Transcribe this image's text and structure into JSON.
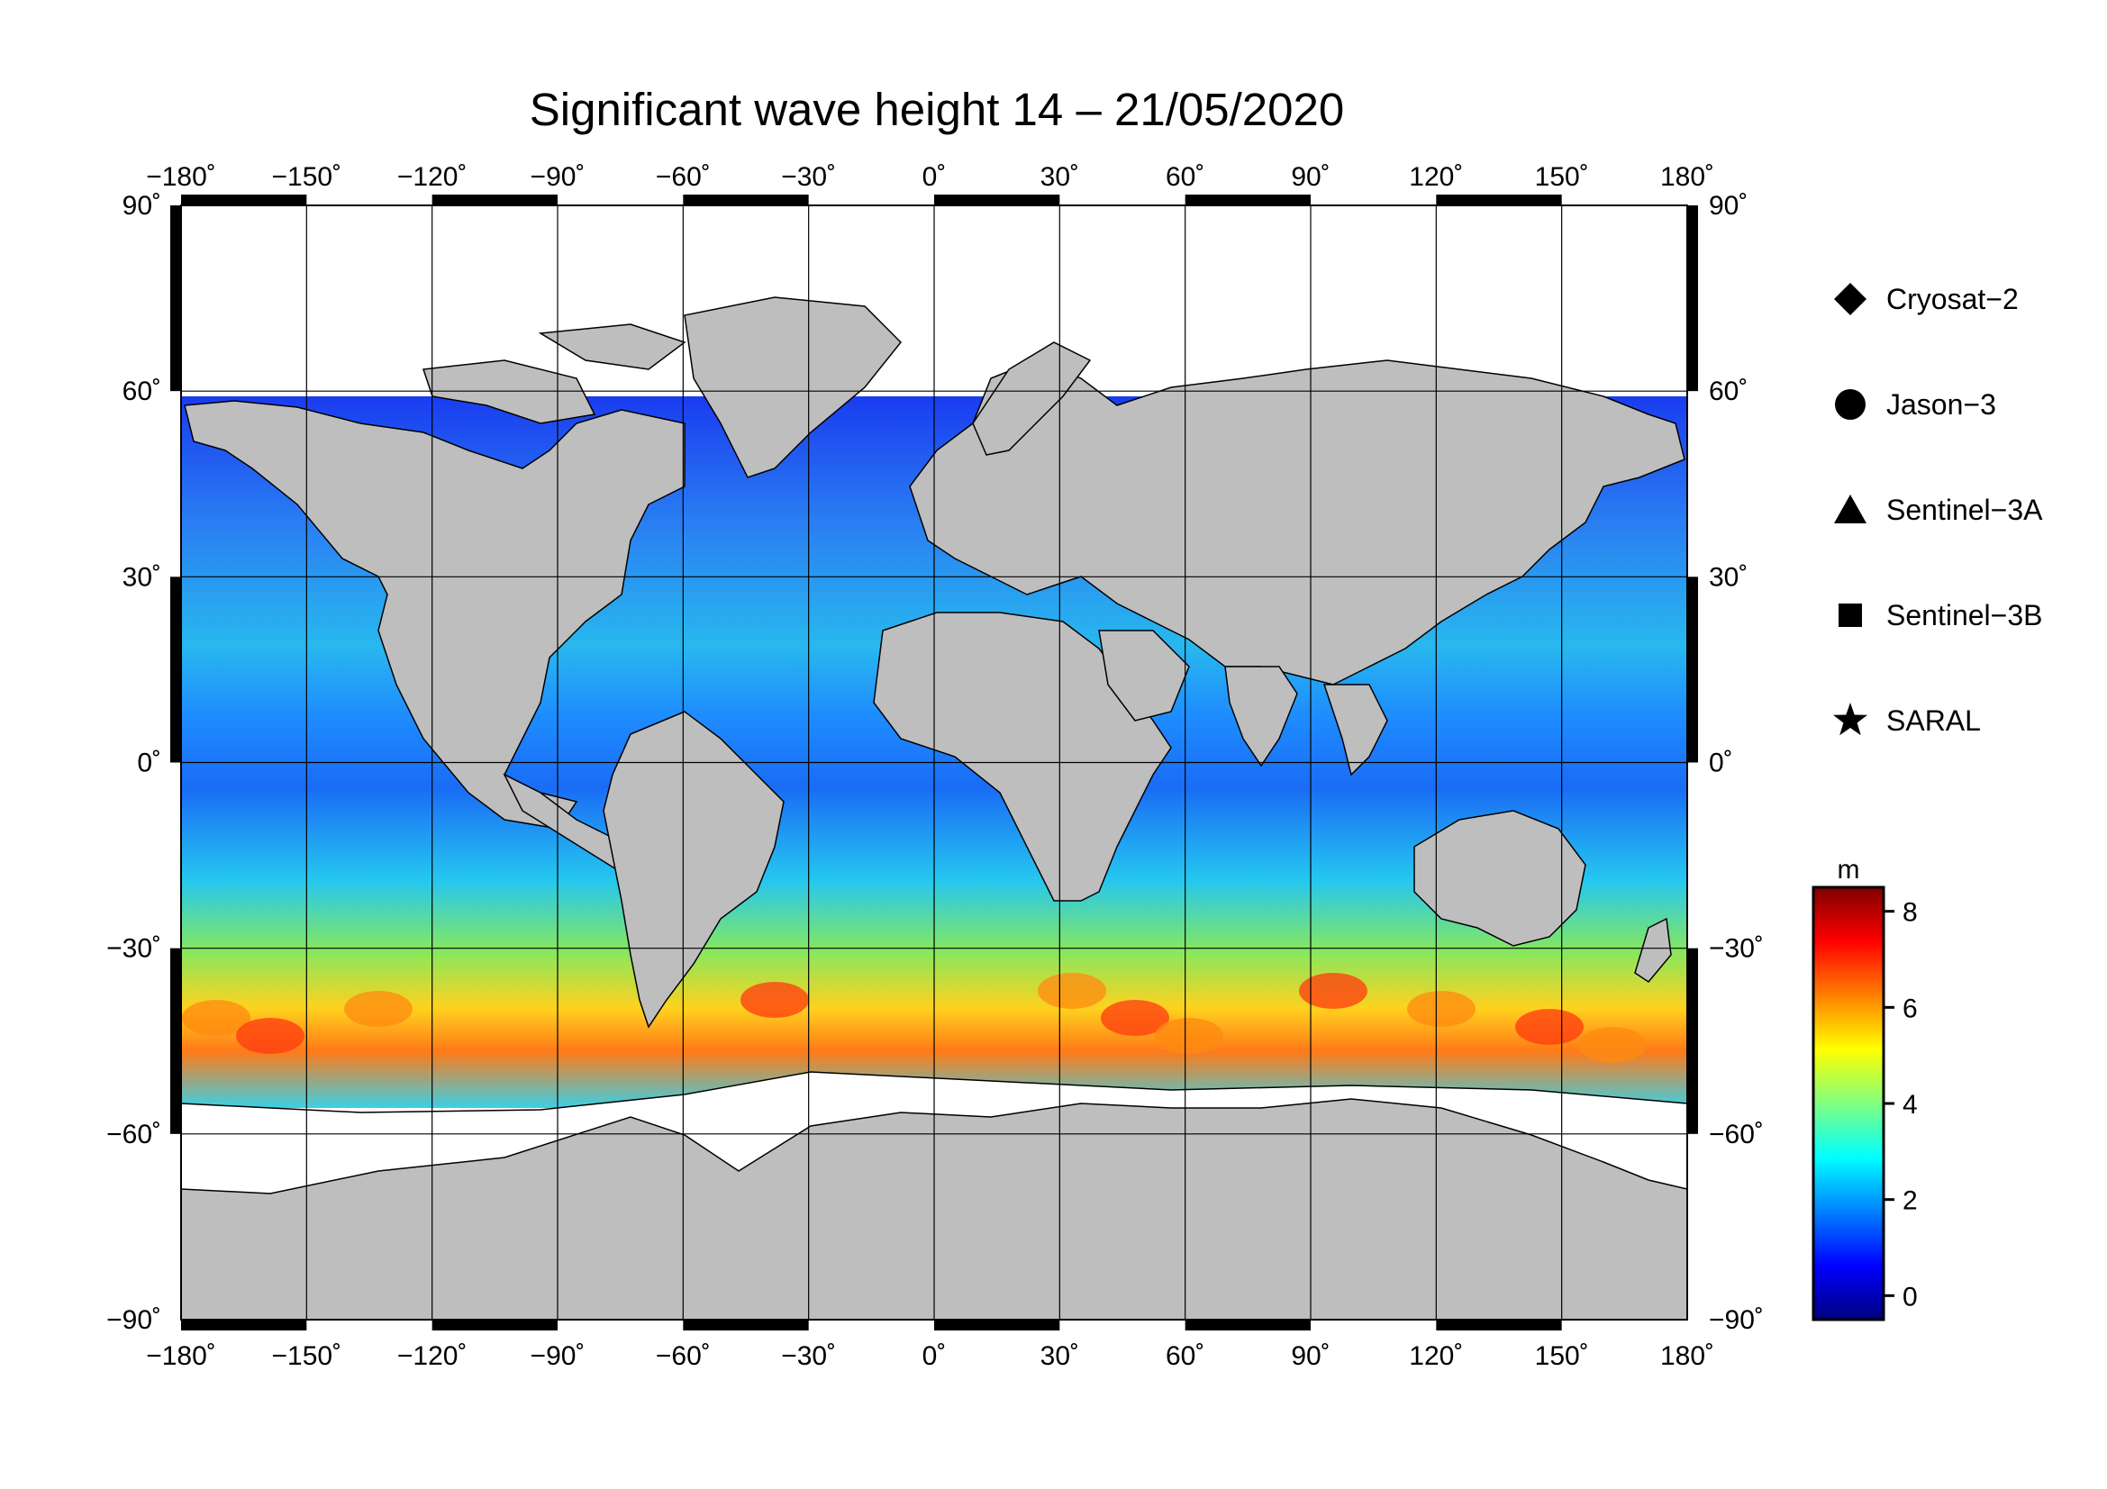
{
  "title": "Significant wave height 14 – 21/05/2020",
  "map": {
    "lon_ticks": [
      "−180˚",
      "−150˚",
      "−120˚",
      "−90˚",
      "−60˚",
      "−30˚",
      "0˚",
      "30˚",
      "60˚",
      "90˚",
      "120˚",
      "150˚",
      "180˚"
    ],
    "lat_ticks": [
      "90˚",
      "60˚",
      "30˚",
      "0˚",
      "−30˚",
      "−60˚",
      "−90˚"
    ],
    "colors": {
      "land": "#bebebe",
      "ice": "#ffffff",
      "frame": "#000000"
    }
  },
  "legend": {
    "items": [
      {
        "label": "Cryosat−2",
        "marker": "diamond"
      },
      {
        "label": "Jason−3",
        "marker": "circle"
      },
      {
        "label": "Sentinel−3A",
        "marker": "triangle"
      },
      {
        "label": "Sentinel−3B",
        "marker": "square"
      },
      {
        "label": "SARAL",
        "marker": "star"
      }
    ]
  },
  "colorbar": {
    "unit": "m",
    "ticks": [
      "8",
      "6",
      "4",
      "2",
      "0"
    ],
    "range": [
      -0.5,
      8.5
    ],
    "colors": [
      "#00007f",
      "#0000ff",
      "#0080ff",
      "#00ffff",
      "#80ff80",
      "#ffff00",
      "#ff8000",
      "#ff0000",
      "#7f0000"
    ]
  }
}
